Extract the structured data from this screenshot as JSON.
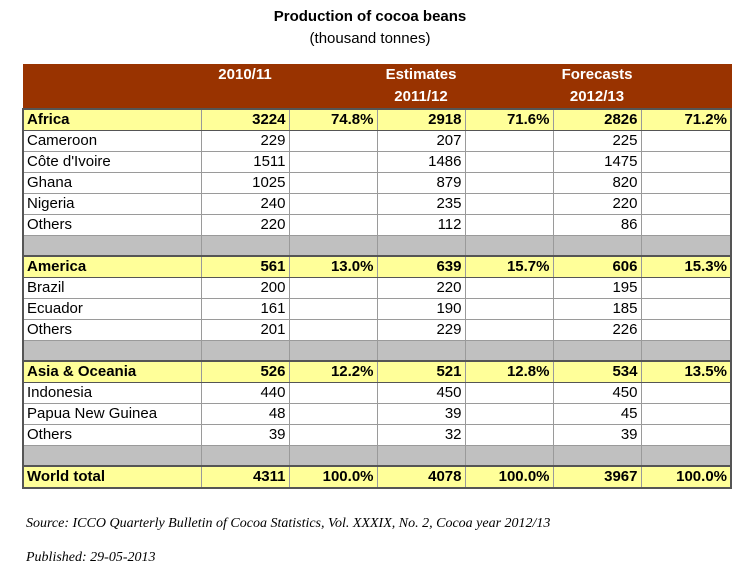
{
  "title": "Production of cocoa beans",
  "subtitle": "(thousand tonnes)",
  "headers": {
    "col1_line1": "2010/11",
    "col1_line2": "",
    "col2_line1": "Estimates",
    "col2_line2": "2011/12",
    "col3_line1": "Forecasts",
    "col3_line2": "2012/13"
  },
  "rows": [
    {
      "type": "region",
      "label": "Africa",
      "v1": "3224",
      "p1": "74.8%",
      "v2": "2918",
      "p2": "71.6%",
      "v3": "2826",
      "p3": "71.2%"
    },
    {
      "type": "country",
      "label": "Cameroon",
      "v1": "229",
      "p1": "",
      "v2": "207",
      "p2": "",
      "v3": "225",
      "p3": ""
    },
    {
      "type": "country",
      "label": "Côte d'Ivoire",
      "v1": "1511",
      "p1": "",
      "v2": "1486",
      "p2": "",
      "v3": "1475",
      "p3": ""
    },
    {
      "type": "country",
      "label": "Ghana",
      "v1": "1025",
      "p1": "",
      "v2": "879",
      "p2": "",
      "v3": "820",
      "p3": ""
    },
    {
      "type": "country",
      "label": "Nigeria",
      "v1": "240",
      "p1": "",
      "v2": "235",
      "p2": "",
      "v3": "220",
      "p3": ""
    },
    {
      "type": "country",
      "label": "Others",
      "v1": "220",
      "p1": "",
      "v2": "112",
      "p2": "",
      "v3": "86",
      "p3": ""
    },
    {
      "type": "spacer"
    },
    {
      "type": "region",
      "label": "America",
      "v1": "561",
      "p1": "13.0%",
      "v2": "639",
      "p2": "15.7%",
      "v3": "606",
      "p3": "15.3%"
    },
    {
      "type": "country",
      "label": "Brazil",
      "v1": "200",
      "p1": "",
      "v2": "220",
      "p2": "",
      "v3": "195",
      "p3": ""
    },
    {
      "type": "country",
      "label": "Ecuador",
      "v1": "161",
      "p1": "",
      "v2": "190",
      "p2": "",
      "v3": "185",
      "p3": ""
    },
    {
      "type": "country",
      "label": "Others",
      "v1": "201",
      "p1": "",
      "v2": "229",
      "p2": "",
      "v3": "226",
      "p3": ""
    },
    {
      "type": "spacer"
    },
    {
      "type": "region",
      "label": "Asia & Oceania",
      "v1": "526",
      "p1": "12.2%",
      "v2": "521",
      "p2": "12.8%",
      "v3": "534",
      "p3": "13.5%"
    },
    {
      "type": "country",
      "label": "Indonesia",
      "v1": "440",
      "p1": "",
      "v2": "450",
      "p2": "",
      "v3": "450",
      "p3": ""
    },
    {
      "type": "country",
      "label": "Papua New Guinea",
      "v1": "48",
      "p1": "",
      "v2": "39",
      "p2": "",
      "v3": "45",
      "p3": ""
    },
    {
      "type": "country",
      "label": "Others",
      "v1": "39",
      "p1": "",
      "v2": "32",
      "p2": "",
      "v3": "39",
      "p3": ""
    },
    {
      "type": "spacer"
    },
    {
      "type": "total",
      "label": "World total",
      "v1": "4311",
      "p1": "100.0%",
      "v2": "4078",
      "p2": "100.0%",
      "v3": "3967",
      "p3": "100.0%"
    }
  ],
  "source": "Source: ICCO Quarterly Bulletin of Cocoa Statistics, Vol. XXXIX, No. 2, Cocoa year 2012/13",
  "published": "Published: 29-05-2013",
  "colors": {
    "header_bg": "#993300",
    "header_text": "#ffffff",
    "highlight_row": "#ffff99",
    "spacer_row": "#c0c0c0"
  }
}
